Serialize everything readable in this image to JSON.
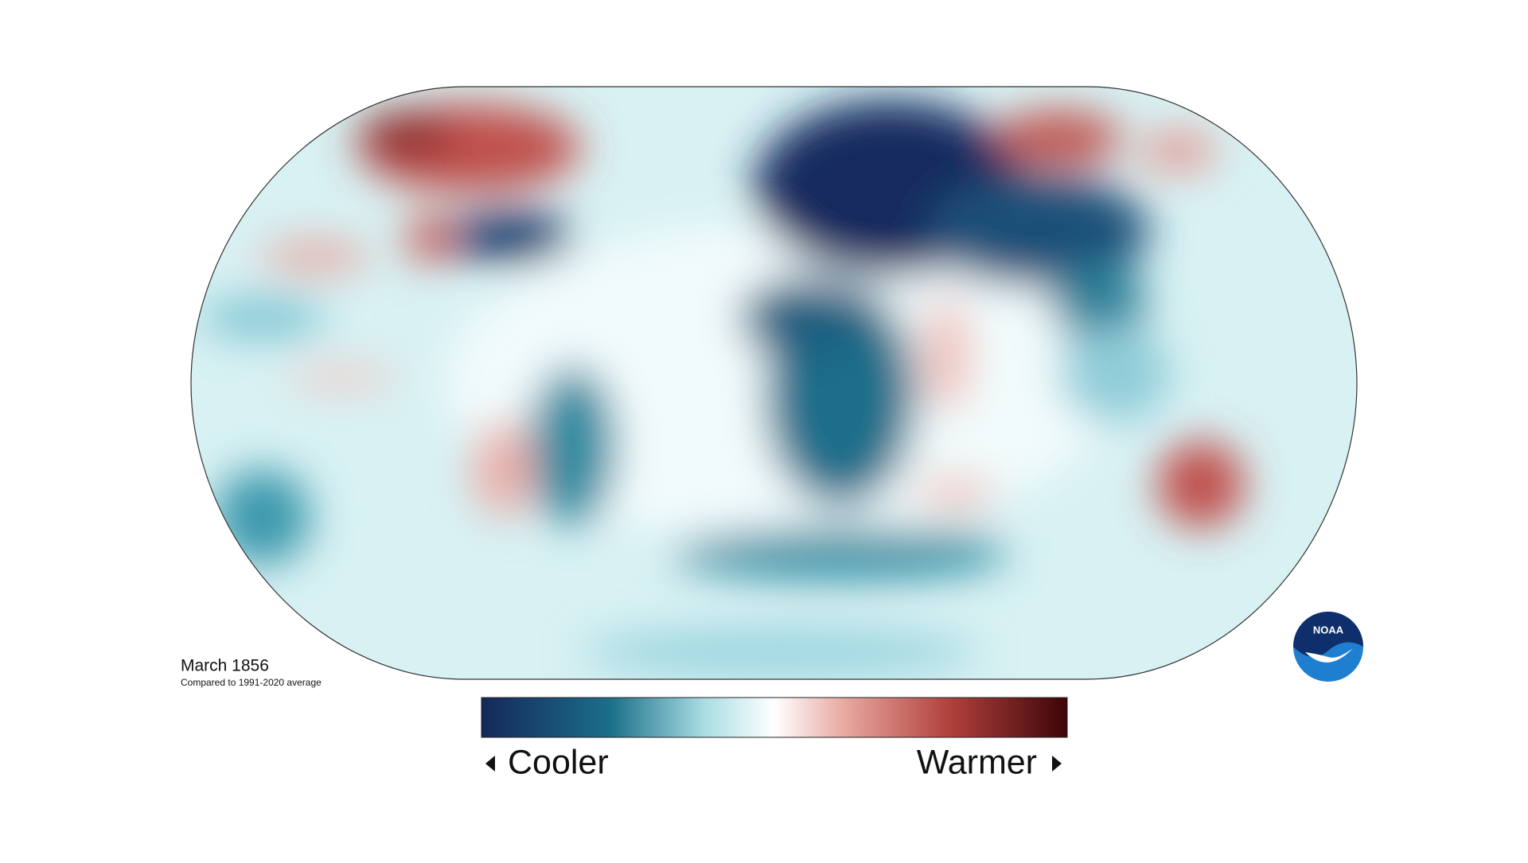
{
  "title": "March 1856",
  "subtitle": "Compared to 1991-2020 average",
  "legend": {
    "low": "Cooler",
    "high": "Warmer"
  },
  "logo": "NOAA"
}
